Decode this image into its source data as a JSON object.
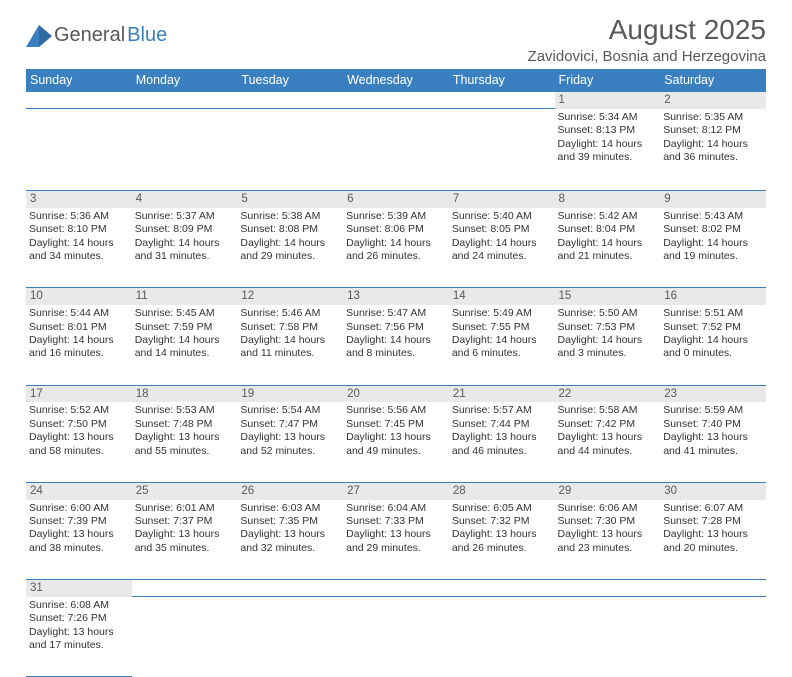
{
  "logo": {
    "text1": "General",
    "text2": "Blue",
    "accent_color": "#3a7fbf",
    "text_color": "#595959"
  },
  "title": "August 2025",
  "location": "Zavidovici, Bosnia and Herzegovina",
  "day_headers": [
    "Sunday",
    "Monday",
    "Tuesday",
    "Wednesday",
    "Thursday",
    "Friday",
    "Saturday"
  ],
  "colors": {
    "header_bg": "#3a7fbf",
    "header_text": "#ffffff",
    "daynum_bg": "#e9e9e9",
    "body_text": "#333333",
    "border": "#3a7fbf",
    "page_bg": "#ffffff"
  },
  "typography": {
    "title_fontsize": 28,
    "location_fontsize": 15,
    "header_fontsize": 12.5,
    "cell_fontsize": 10.5,
    "daynum_fontsize": 11.5
  },
  "weeks": [
    [
      null,
      null,
      null,
      null,
      null,
      {
        "n": "1",
        "sunrise": "5:34 AM",
        "sunset": "8:13 PM",
        "dh": "14",
        "dm": "39"
      },
      {
        "n": "2",
        "sunrise": "5:35 AM",
        "sunset": "8:12 PM",
        "dh": "14",
        "dm": "36"
      }
    ],
    [
      {
        "n": "3",
        "sunrise": "5:36 AM",
        "sunset": "8:10 PM",
        "dh": "14",
        "dm": "34"
      },
      {
        "n": "4",
        "sunrise": "5:37 AM",
        "sunset": "8:09 PM",
        "dh": "14",
        "dm": "31"
      },
      {
        "n": "5",
        "sunrise": "5:38 AM",
        "sunset": "8:08 PM",
        "dh": "14",
        "dm": "29"
      },
      {
        "n": "6",
        "sunrise": "5:39 AM",
        "sunset": "8:06 PM",
        "dh": "14",
        "dm": "26"
      },
      {
        "n": "7",
        "sunrise": "5:40 AM",
        "sunset": "8:05 PM",
        "dh": "14",
        "dm": "24"
      },
      {
        "n": "8",
        "sunrise": "5:42 AM",
        "sunset": "8:04 PM",
        "dh": "14",
        "dm": "21"
      },
      {
        "n": "9",
        "sunrise": "5:43 AM",
        "sunset": "8:02 PM",
        "dh": "14",
        "dm": "19"
      }
    ],
    [
      {
        "n": "10",
        "sunrise": "5:44 AM",
        "sunset": "8:01 PM",
        "dh": "14",
        "dm": "16"
      },
      {
        "n": "11",
        "sunrise": "5:45 AM",
        "sunset": "7:59 PM",
        "dh": "14",
        "dm": "14"
      },
      {
        "n": "12",
        "sunrise": "5:46 AM",
        "sunset": "7:58 PM",
        "dh": "14",
        "dm": "11"
      },
      {
        "n": "13",
        "sunrise": "5:47 AM",
        "sunset": "7:56 PM",
        "dh": "14",
        "dm": "8"
      },
      {
        "n": "14",
        "sunrise": "5:49 AM",
        "sunset": "7:55 PM",
        "dh": "14",
        "dm": "6"
      },
      {
        "n": "15",
        "sunrise": "5:50 AM",
        "sunset": "7:53 PM",
        "dh": "14",
        "dm": "3"
      },
      {
        "n": "16",
        "sunrise": "5:51 AM",
        "sunset": "7:52 PM",
        "dh": "14",
        "dm": "0"
      }
    ],
    [
      {
        "n": "17",
        "sunrise": "5:52 AM",
        "sunset": "7:50 PM",
        "dh": "13",
        "dm": "58"
      },
      {
        "n": "18",
        "sunrise": "5:53 AM",
        "sunset": "7:48 PM",
        "dh": "13",
        "dm": "55"
      },
      {
        "n": "19",
        "sunrise": "5:54 AM",
        "sunset": "7:47 PM",
        "dh": "13",
        "dm": "52"
      },
      {
        "n": "20",
        "sunrise": "5:56 AM",
        "sunset": "7:45 PM",
        "dh": "13",
        "dm": "49"
      },
      {
        "n": "21",
        "sunrise": "5:57 AM",
        "sunset": "7:44 PM",
        "dh": "13",
        "dm": "46"
      },
      {
        "n": "22",
        "sunrise": "5:58 AM",
        "sunset": "7:42 PM",
        "dh": "13",
        "dm": "44"
      },
      {
        "n": "23",
        "sunrise": "5:59 AM",
        "sunset": "7:40 PM",
        "dh": "13",
        "dm": "41"
      }
    ],
    [
      {
        "n": "24",
        "sunrise": "6:00 AM",
        "sunset": "7:39 PM",
        "dh": "13",
        "dm": "38"
      },
      {
        "n": "25",
        "sunrise": "6:01 AM",
        "sunset": "7:37 PM",
        "dh": "13",
        "dm": "35"
      },
      {
        "n": "26",
        "sunrise": "6:03 AM",
        "sunset": "7:35 PM",
        "dh": "13",
        "dm": "32"
      },
      {
        "n": "27",
        "sunrise": "6:04 AM",
        "sunset": "7:33 PM",
        "dh": "13",
        "dm": "29"
      },
      {
        "n": "28",
        "sunrise": "6:05 AM",
        "sunset": "7:32 PM",
        "dh": "13",
        "dm": "26"
      },
      {
        "n": "29",
        "sunrise": "6:06 AM",
        "sunset": "7:30 PM",
        "dh": "13",
        "dm": "23"
      },
      {
        "n": "30",
        "sunrise": "6:07 AM",
        "sunset": "7:28 PM",
        "dh": "13",
        "dm": "20"
      }
    ],
    [
      {
        "n": "31",
        "sunrise": "6:08 AM",
        "sunset": "7:26 PM",
        "dh": "13",
        "dm": "17"
      },
      null,
      null,
      null,
      null,
      null,
      null
    ]
  ],
  "labels": {
    "sunrise": "Sunrise: ",
    "sunset": "Sunset: ",
    "daylight_pre": "Daylight: ",
    "daylight_mid": " hours and ",
    "daylight_post": " minutes."
  }
}
